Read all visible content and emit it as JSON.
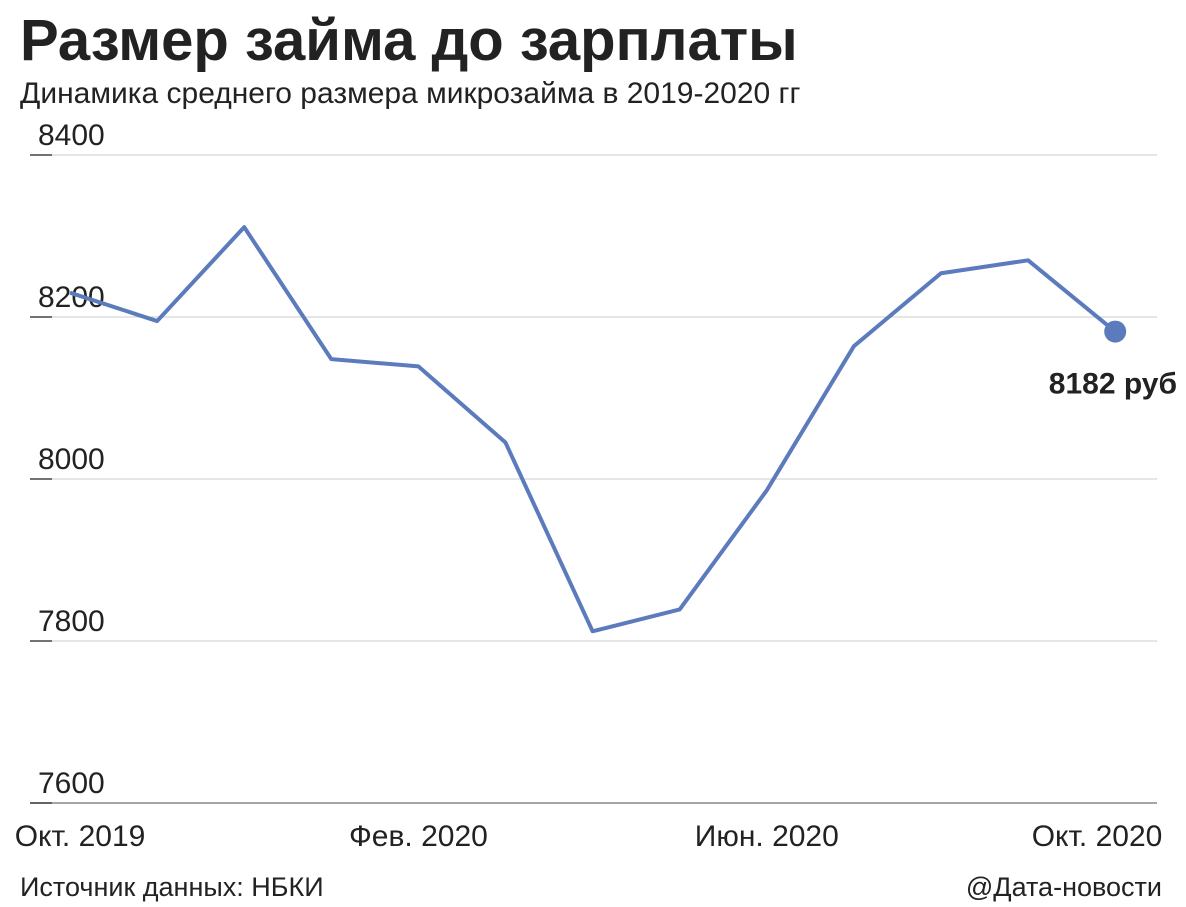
{
  "chart_data": {
    "type": "line",
    "title": "Размер займа до зарплаты",
    "subtitle": "Динамика среднего размера микрозайма в 2019-2020 гг",
    "categories": [
      "Окт. 2019",
      null,
      null,
      null,
      "Фев. 2020",
      null,
      null,
      null,
      "Июн. 2020",
      null,
      null,
      null,
      "Окт. 2020"
    ],
    "series": [
      {
        "name": "Средний размер микрозайма",
        "color": "#5b7bbd",
        "values": [
          8230,
          8195,
          8311,
          8148,
          8139,
          8045,
          7812,
          7839,
          7986,
          8164,
          8254,
          8270,
          8182
        ],
        "value_labels": [
          null,
          null,
          null,
          null,
          null,
          null,
          null,
          null,
          null,
          null,
          null,
          null,
          "8182 руб"
        ]
      }
    ],
    "ylim": [
      7600,
      8400
    ],
    "yticks": [
      7600,
      7800,
      8000,
      8200,
      8400
    ],
    "grid": true,
    "source": "Источник данных: НБКИ",
    "credit": "@Дата-новости"
  }
}
